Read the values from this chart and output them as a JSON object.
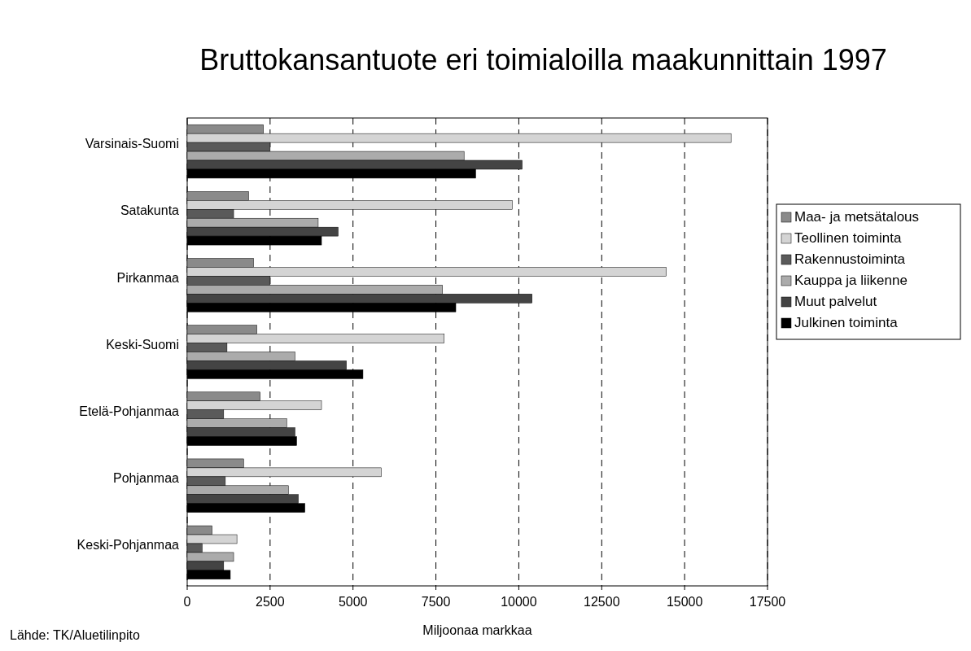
{
  "chart_data": {
    "type": "bar",
    "orientation": "horizontal",
    "title": "Bruttokansantuote eri toimialoilla maakunnittain 1997",
    "xlabel": "Miljoonaa markkaa",
    "categories": [
      "Varsinais-Suomi",
      "Satakunta",
      "Pirkanmaa",
      "Keski-Suomi",
      "Etelä-Pohjanmaa",
      "Pohjanmaa",
      "Keski-Pohjanmaa"
    ],
    "series": [
      {
        "name": "Maa- ja metsätalous",
        "color": "#8a8a8a",
        "values": [
          2300,
          1850,
          2000,
          2100,
          2200,
          1700,
          750
        ]
      },
      {
        "name": "Teollinen toiminta",
        "color": "#d4d4d4",
        "values": [
          16400,
          9800,
          14450,
          7750,
          4050,
          5850,
          1500
        ]
      },
      {
        "name": "Rakennustoiminta",
        "color": "#5a5a5a",
        "values": [
          2500,
          1400,
          2500,
          1200,
          1100,
          1150,
          450
        ]
      },
      {
        "name": "Kauppa ja liikenne",
        "color": "#ababab",
        "values": [
          8350,
          3950,
          7700,
          3250,
          3000,
          3050,
          1400
        ]
      },
      {
        "name": "Muut palvelut",
        "color": "#444444",
        "values": [
          10100,
          4550,
          10400,
          4800,
          3250,
          3350,
          1100
        ]
      },
      {
        "name": "Julkinen toiminta",
        "color": "#000000",
        "values": [
          8700,
          4050,
          8100,
          5300,
          3300,
          3550,
          1300
        ]
      }
    ],
    "xlim": [
      0,
      17500
    ],
    "xticks": [
      0,
      2500,
      5000,
      7500,
      10000,
      12500,
      15000,
      17500
    ],
    "grid": "x",
    "legend": "right",
    "annotations": [
      "Lähde: TK/Aluetilinpito"
    ]
  }
}
